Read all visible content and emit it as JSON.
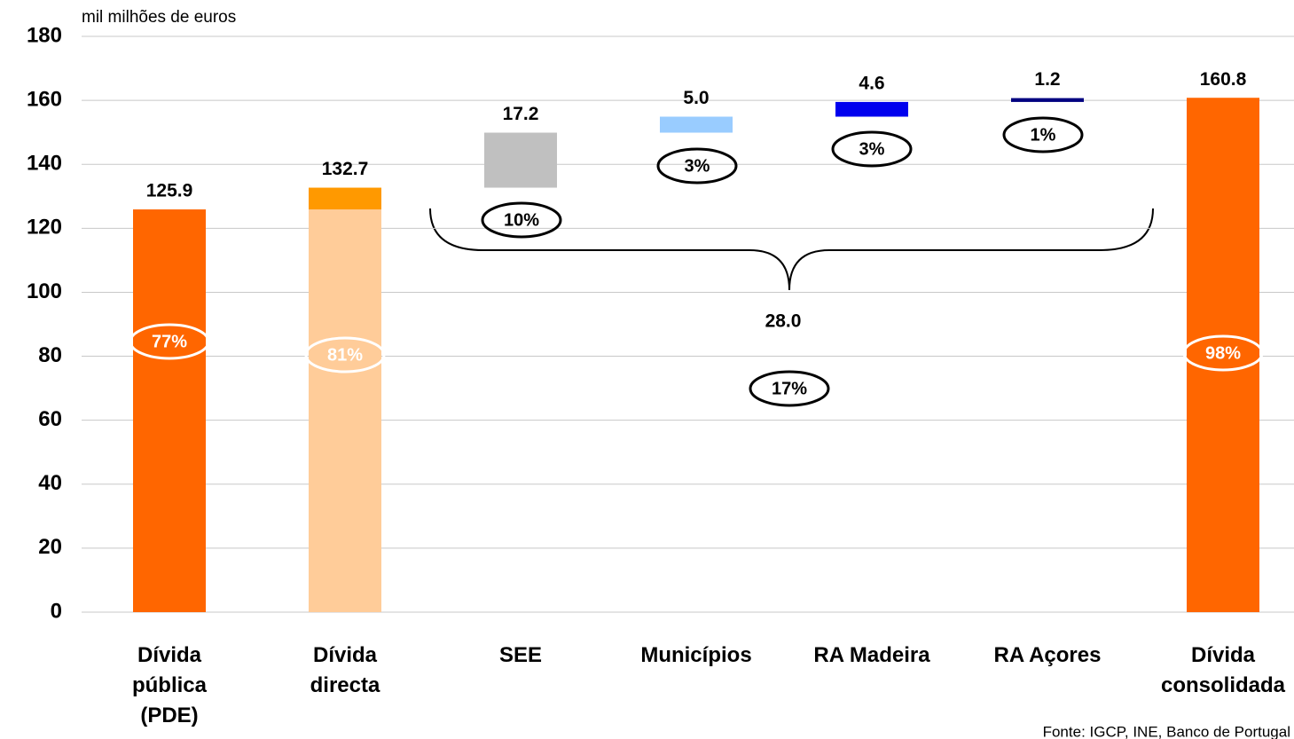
{
  "chart_data": {
    "type": "waterfall",
    "y_unit_label": "mil milhões de euros",
    "categories": [
      "Dívida pública (PDE)",
      "Dívida directa",
      "SEE",
      "Municípios",
      "RA Madeira",
      "RA Açores",
      "Dívida consolidada"
    ],
    "values": [
      125.9,
      132.7,
      17.2,
      5.0,
      4.6,
      1.2,
      160.8
    ],
    "value_labels": [
      "125.9",
      "132.7",
      "17.2",
      "5.0",
      "4.6",
      "1.2",
      "160.8"
    ],
    "measure": [
      "absolute",
      "absolute",
      "relative",
      "relative",
      "relative",
      "relative",
      "total"
    ],
    "colors": [
      "#FF6600",
      "#FF9900",
      "#C0C0C0",
      "#99CCFF",
      "#0000EE",
      "#000080",
      "#FF6600"
    ],
    "split": {
      "category": 1,
      "from": 0,
      "color": "#FFCC99"
    },
    "share_labels": [
      "77%",
      "81%",
      "10%",
      "3%",
      "3%",
      "1%",
      "98%"
    ],
    "brace_annotation": {
      "value_label": "28.0",
      "share_label": "17%"
    },
    "ylim": [
      0,
      180
    ],
    "yticks": [
      0,
      20,
      40,
      60,
      80,
      100,
      120,
      140,
      160,
      180
    ],
    "grid": true,
    "source": "Fonte: IGCP, INE, Banco de Portugal"
  }
}
